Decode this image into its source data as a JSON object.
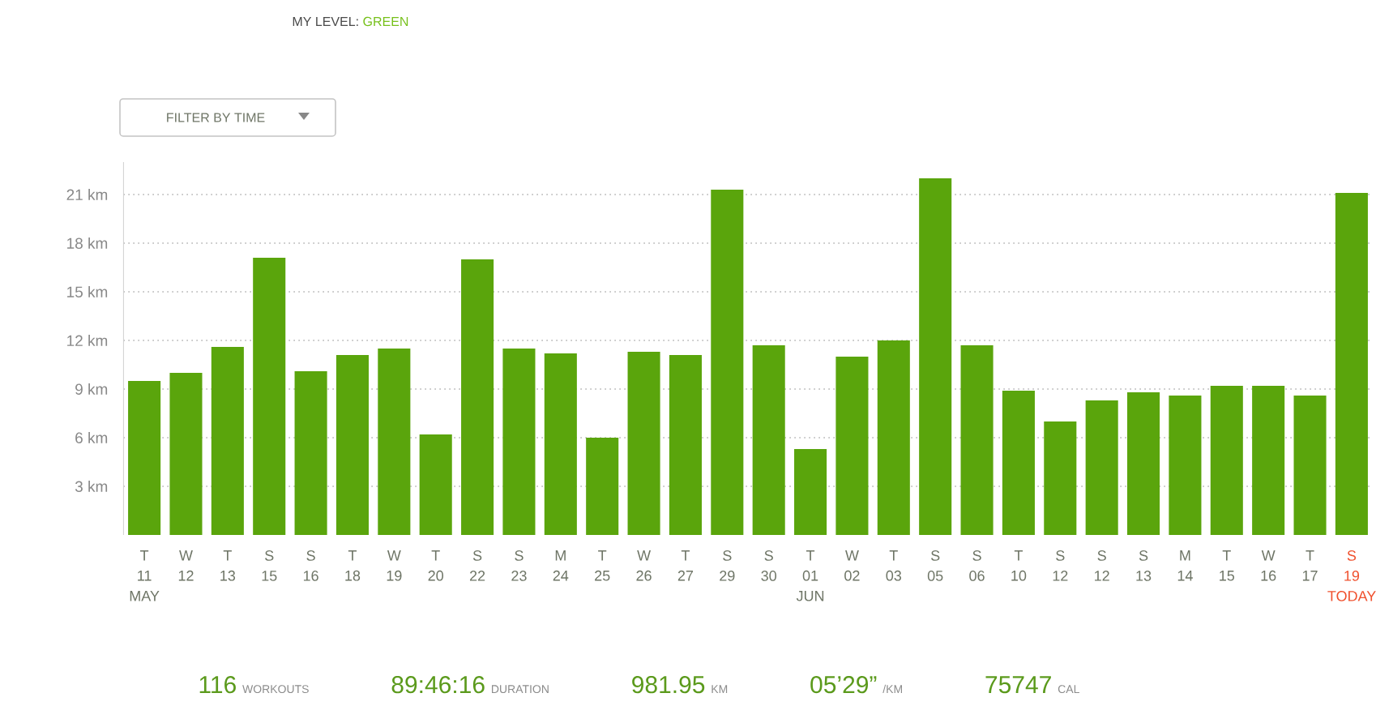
{
  "chart_data": {
    "type": "bar",
    "subtitle": "MY LEVEL: GREEN",
    "categories": [
      "T 11 MAY",
      "W 12",
      "T 13",
      "S 15",
      "S 16",
      "T 18",
      "W 19",
      "T 20",
      "S 22",
      "S 23",
      "M 24",
      "T 25",
      "W 26",
      "T 27",
      "S 29",
      "S 30",
      "T 01 JUN",
      "W 02",
      "T 03",
      "S 05",
      "S 06",
      "T 10",
      "S 12",
      "S 12",
      "S 13",
      "M 14",
      "T 15",
      "W 16",
      "T 17",
      "S 19 TODAY"
    ],
    "values": [
      9.5,
      10.0,
      11.6,
      17.1,
      10.1,
      11.1,
      11.5,
      6.2,
      17.0,
      11.5,
      11.2,
      6.0,
      11.3,
      11.1,
      21.3,
      11.7,
      5.3,
      11.0,
      12.0,
      22.0,
      11.7,
      8.9,
      7.0,
      8.3,
      8.8,
      8.6,
      9.2,
      9.2,
      8.6,
      21.1
    ],
    "color": "#5aa50c",
    "ylim": [
      0,
      23
    ],
    "yticks": [
      {
        "value": 3,
        "label": "3 km"
      },
      {
        "value": 6,
        "label": "6 km"
      },
      {
        "value": 9,
        "label": "9 km"
      },
      {
        "value": 12,
        "label": "12 km"
      },
      {
        "value": 15,
        "label": "15 km"
      },
      {
        "value": 18,
        "label": "18 km"
      },
      {
        "value": 21,
        "label": "21 km"
      }
    ],
    "grid": "y",
    "annotations": [
      "FILTER BY TIME",
      "116",
      "WORKOUTS",
      "89:46:16",
      "DURATION",
      "981.95",
      "KM",
      "05’29”",
      "/KM",
      "75747",
      "CAL"
    ]
  }
}
